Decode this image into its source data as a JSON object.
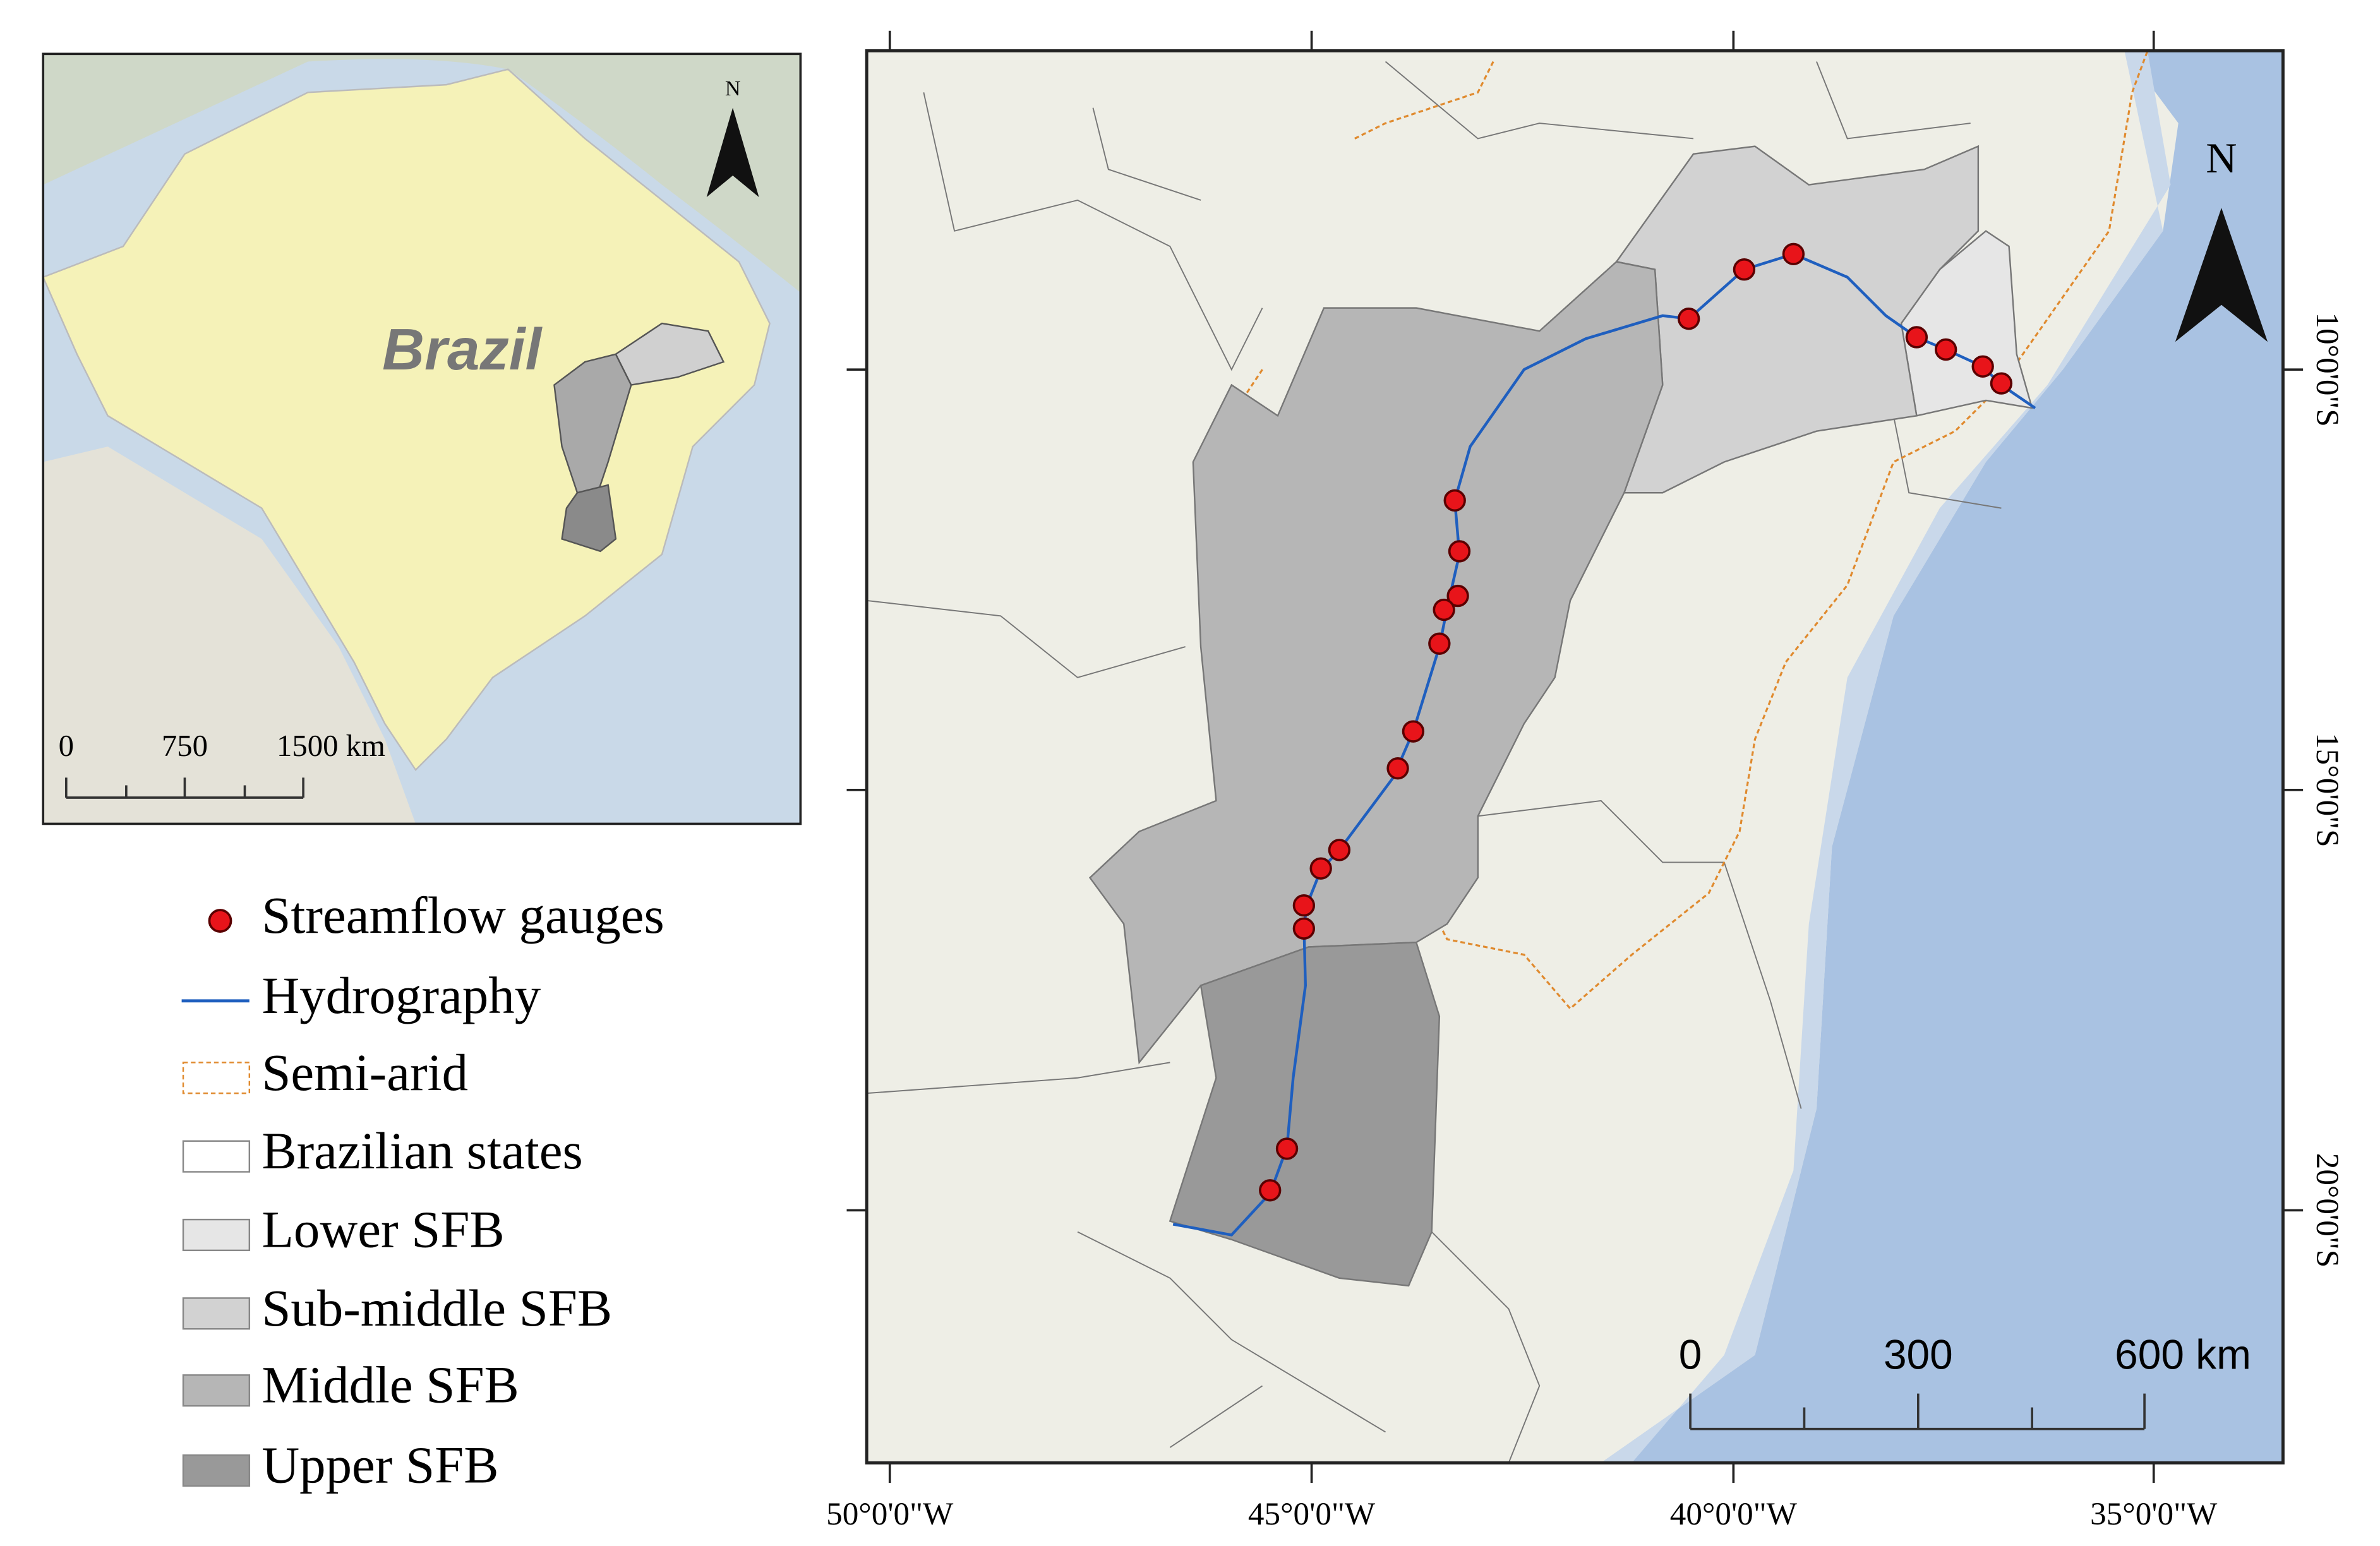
{
  "inset": {
    "label": "Brazil",
    "north": "N",
    "scale": [
      "0",
      "750",
      "1500 km"
    ]
  },
  "legend": [
    "Streamflow gauges",
    "Hydrography",
    "Semi-arid",
    "Brazilian states",
    "Lower SFB",
    "Sub-middle SFB",
    "Middle SFB",
    "Upper SFB"
  ],
  "main_map": {
    "north": "N",
    "scale": [
      "0",
      "300",
      "600 km"
    ],
    "x_labels": [
      "50°0'0\"W",
      "45°0'0\"W",
      "40°0'0\"W",
      "35°0'0\"W"
    ],
    "y_labels": [
      "10°0'0\"S",
      "15°0'0\"S",
      "20°0'0\"S"
    ]
  }
}
